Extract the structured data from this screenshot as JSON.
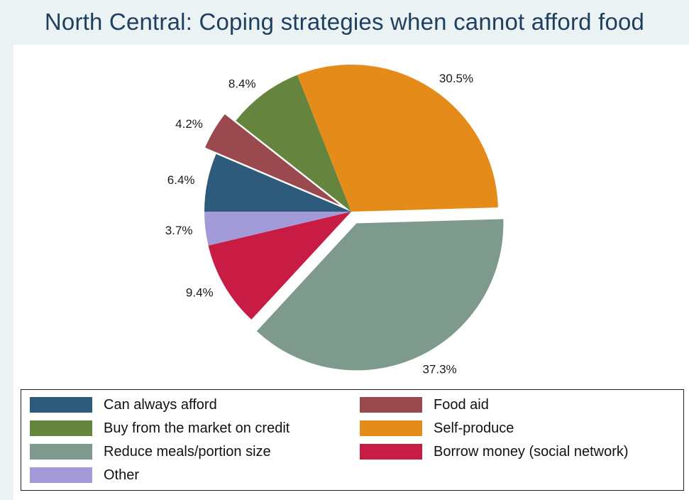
{
  "chart_data": {
    "type": "pie",
    "title": "North Central: Coping strategies when cannot afford food",
    "slices": [
      {
        "label": "Can always afford",
        "value": 6.4,
        "value_label": "6.4%",
        "color": "#2e5a7c",
        "exploded": false
      },
      {
        "label": "Food aid",
        "value": 4.2,
        "value_label": "4.2%",
        "color": "#9a4a4f",
        "exploded": true
      },
      {
        "label": "Buy from the market on credit",
        "value": 8.4,
        "value_label": "8.4%",
        "color": "#65843e",
        "exploded": false
      },
      {
        "label": "Self-produce",
        "value": 30.5,
        "value_label": "30.5%",
        "color": "#e58b1a",
        "exploded": false
      },
      {
        "label": "Reduce meals/portion size",
        "value": 37.3,
        "value_label": "37.3%",
        "color": "#7e9a8d",
        "exploded": true
      },
      {
        "label": "Borrow money (social network)",
        "value": 9.4,
        "value_label": "9.4%",
        "color": "#c81c44",
        "exploded": false
      },
      {
        "label": "Other",
        "value": 3.7,
        "value_label": "3.7%",
        "color": "#a39bd9",
        "exploded": false
      }
    ],
    "legend": {
      "placement": "bottom",
      "columns": 2,
      "entries": [
        "Can always afford",
        "Food aid",
        "Buy from the market on credit",
        "Self-produce",
        "Reduce meals/portion size",
        "Borrow money (social network)",
        "Other"
      ]
    }
  }
}
